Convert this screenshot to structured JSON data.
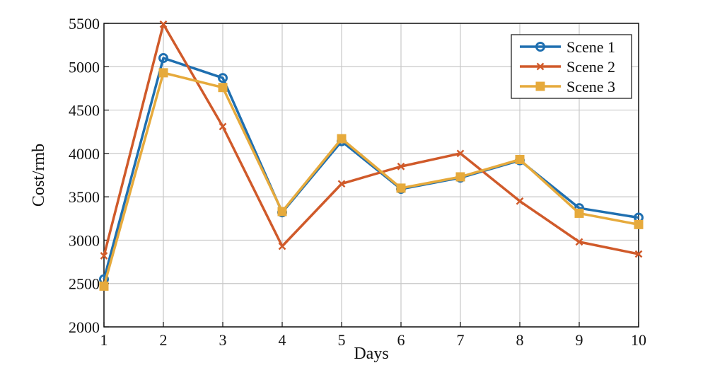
{
  "chart_data": {
    "type": "line",
    "title": "",
    "xlabel": "Days",
    "ylabel": "Cost/rmb",
    "x": [
      1,
      2,
      3,
      4,
      5,
      6,
      7,
      8,
      9,
      10
    ],
    "xlim": [
      1,
      10
    ],
    "ylim": [
      2000,
      5500
    ],
    "yticks": [
      2000,
      2500,
      3000,
      3500,
      4000,
      4500,
      5000,
      5500
    ],
    "grid": true,
    "legend_position": "top-right",
    "series": [
      {
        "name": "Scene 1",
        "color": "#1f6fb0",
        "marker": "circle",
        "values": [
          2550,
          5100,
          4870,
          3320,
          4140,
          3590,
          3720,
          3920,
          3370,
          3260
        ]
      },
      {
        "name": "Scene 2",
        "color": "#d05a2a",
        "marker": "x",
        "values": [
          2820,
          5490,
          4310,
          2930,
          3650,
          3850,
          4000,
          3450,
          2980,
          2840
        ]
      },
      {
        "name": "Scene 3",
        "color": "#e6aa3c",
        "marker": "square",
        "values": [
          2470,
          4930,
          4760,
          3330,
          4170,
          3600,
          3730,
          3930,
          3310,
          3180
        ]
      }
    ]
  }
}
